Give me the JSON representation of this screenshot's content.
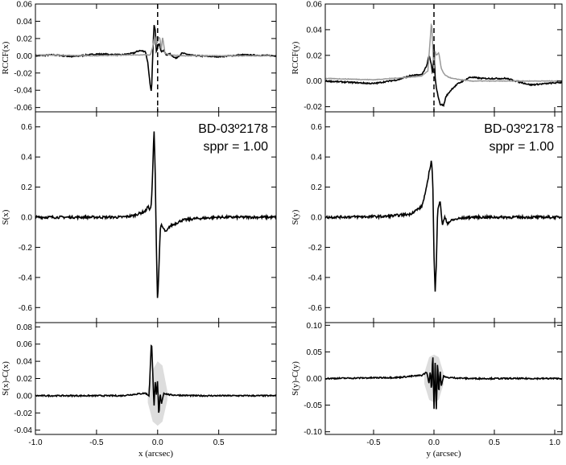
{
  "chart_data": [
    {
      "type": "line",
      "id": "rccf_x",
      "ylabel": "RCCF(x)",
      "xlim": [
        -1.0,
        0.97
      ],
      "ylim": [
        -0.065,
        0.06
      ],
      "yticks": [
        -0.06,
        -0.04,
        -0.02,
        0.0,
        0.02,
        0.04,
        0.06
      ],
      "ytick_labels": [
        "-0.06",
        "-0.04",
        "-0.02",
        "0.00",
        "0.02",
        "0.04",
        "0.06"
      ],
      "vline_x": 0.0,
      "series": [
        {
          "color": "#000000",
          "x": [
            -1.0,
            -0.85,
            -0.7,
            -0.5,
            -0.3,
            -0.2,
            -0.15,
            -0.1,
            -0.08,
            -0.06,
            -0.05,
            -0.04,
            -0.03,
            -0.02,
            -0.01,
            0.0,
            0.01,
            0.02,
            0.03,
            0.05,
            0.07,
            0.1,
            0.15,
            0.2,
            0.3,
            0.5,
            0.7,
            0.97
          ],
          "y": [
            0.0,
            0.001,
            -0.001,
            0.002,
            0.001,
            0.003,
            0.006,
            0.005,
            -0.008,
            -0.036,
            -0.043,
            0.0,
            0.036,
            0.03,
            0.005,
            0.01,
            0.015,
            0.01,
            0.005,
            0.006,
            0.001,
            0.002,
            -0.003,
            0.003,
            0.0,
            -0.001,
            0.001,
            0.0
          ]
        },
        {
          "color": "#999999",
          "x": [
            -1.0,
            -0.5,
            -0.2,
            -0.1,
            -0.06,
            -0.04,
            -0.03,
            -0.02,
            -0.01,
            0.0,
            0.01,
            0.02,
            0.03,
            0.04,
            0.06,
            0.1,
            0.2,
            0.5,
            0.97
          ],
          "y": [
            0.001,
            0.0,
            0.001,
            0.001,
            0.001,
            0.01,
            0.02,
            0.012,
            0.023,
            0.015,
            0.022,
            0.02,
            0.005,
            0.022,
            0.003,
            0.001,
            0.0,
            0.0,
            0.0
          ]
        }
      ]
    },
    {
      "type": "line",
      "id": "s_x",
      "ylabel": "S(x)",
      "xlim": [
        -1.0,
        0.97
      ],
      "ylim": [
        -0.7,
        0.7
      ],
      "yticks": [
        -0.6,
        -0.4,
        -0.2,
        0.0,
        0.2,
        0.4,
        0.6
      ],
      "ytick_labels": [
        "-0.6",
        "-0.4",
        "-0.2",
        "0.0",
        "0.2",
        "0.4",
        "0.6"
      ],
      "annotation_line1": "BD-03º2178",
      "annotation_line2": "sppr = 1.00",
      "series": [
        {
          "color": "#000000",
          "x": [
            -1.0,
            -0.3,
            -0.2,
            -0.1,
            -0.08,
            -0.06,
            -0.05,
            -0.04,
            -0.03,
            -0.02,
            -0.01,
            0.0,
            0.01,
            0.02,
            0.03,
            0.05,
            0.07,
            0.1,
            0.15,
            0.2,
            0.3,
            0.5,
            0.7,
            0.97
          ],
          "y": [
            0.0,
            0.0,
            0.01,
            0.04,
            0.07,
            0.05,
            0.1,
            0.3,
            0.6,
            0.3,
            -0.2,
            -0.57,
            -0.35,
            -0.1,
            -0.05,
            -0.08,
            -0.1,
            -0.06,
            -0.04,
            -0.02,
            -0.01,
            0.0,
            0.0,
            0.0
          ]
        }
      ]
    },
    {
      "type": "line",
      "id": "s_minus_c_x",
      "ylabel": "S(x)-C(x)",
      "xlabel": "x (arcsec)",
      "xlim": [
        -1.0,
        0.97
      ],
      "ylim": [
        -0.045,
        0.085
      ],
      "yticks": [
        -0.04,
        -0.02,
        0.0,
        0.02,
        0.04,
        0.06,
        0.08
      ],
      "ytick_labels": [
        "-0.04",
        "-0.02",
        "0.00",
        "0.02",
        "0.04",
        "0.06",
        "0.08"
      ],
      "xticks": [
        -1.0,
        -0.5,
        0.0,
        0.5
      ],
      "xtick_labels": [
        "-1.0",
        "-0.5",
        "0.0",
        "0.5"
      ],
      "band": {
        "color": "#dddddd",
        "x": [
          -0.08,
          -0.04,
          0.0,
          0.04,
          0.08
        ],
        "low": [
          -0.008,
          -0.03,
          -0.035,
          -0.03,
          -0.005
        ],
        "high": [
          0.008,
          0.03,
          0.04,
          0.035,
          0.005
        ]
      },
      "series": [
        {
          "color": "#000000",
          "x": [
            -1.0,
            -0.3,
            -0.1,
            -0.07,
            -0.05,
            -0.04,
            -0.03,
            -0.02,
            -0.01,
            0.0,
            0.01,
            0.02,
            0.03,
            0.05,
            0.1,
            0.3,
            0.97
          ],
          "y": [
            0.0,
            0.0,
            0.003,
            0.0,
            0.066,
            0.03,
            -0.015,
            0.017,
            0.0,
            0.018,
            -0.027,
            0.005,
            -0.01,
            0.003,
            0.001,
            0.0,
            0.0
          ]
        }
      ]
    },
    {
      "type": "line",
      "id": "rccf_y",
      "ylabel": "RCCF(y)",
      "xlim": [
        -0.9,
        1.06
      ],
      "ylim": [
        -0.024,
        0.06
      ],
      "yticks": [
        -0.02,
        0.0,
        0.02,
        0.04,
        0.06
      ],
      "ytick_labels": [
        "-0.02",
        "0.00",
        "0.02",
        "0.04",
        "0.06"
      ],
      "vline_x": 0.0,
      "series": [
        {
          "color": "#000000",
          "x": [
            -0.9,
            -0.7,
            -0.5,
            -0.3,
            -0.2,
            -0.1,
            -0.06,
            -0.04,
            -0.02,
            -0.01,
            0.0,
            0.01,
            0.02,
            0.03,
            0.05,
            0.08,
            0.1,
            0.15,
            0.2,
            0.3,
            0.4,
            0.6,
            0.8,
            1.06
          ],
          "y": [
            0.0,
            -0.001,
            -0.002,
            0.001,
            0.004,
            0.005,
            0.012,
            0.02,
            0.012,
            0.004,
            0.03,
            0.002,
            -0.005,
            -0.01,
            -0.018,
            -0.019,
            -0.012,
            -0.006,
            -0.002,
            0.003,
            0.002,
            0.002,
            -0.003,
            -0.001
          ]
        },
        {
          "color": "#999999",
          "x": [
            -0.9,
            -0.5,
            -0.2,
            -0.1,
            -0.05,
            -0.02,
            0.0,
            0.01,
            0.02,
            0.04,
            0.06,
            0.08,
            0.1,
            0.15,
            0.3,
            0.6,
            1.06
          ],
          "y": [
            0.002,
            0.001,
            0.003,
            0.004,
            0.008,
            0.047,
            0.006,
            0.023,
            0.02,
            0.022,
            0.01,
            0.006,
            0.004,
            0.002,
            0.0,
            0.0,
            0.0
          ]
        }
      ]
    },
    {
      "type": "line",
      "id": "s_y",
      "ylabel": "S(y)",
      "xlim": [
        -0.9,
        1.06
      ],
      "ylim": [
        -0.7,
        0.7
      ],
      "yticks": [
        -0.6,
        -0.4,
        -0.2,
        0.0,
        0.2,
        0.4,
        0.6
      ],
      "ytick_labels": [
        "-0.6",
        "-0.4",
        "-0.2",
        "0.0",
        "0.2",
        "0.4",
        "0.6"
      ],
      "annotation_line1": "BD-03º2178",
      "annotation_line2": "sppr = 1.00",
      "series": [
        {
          "color": "#000000",
          "x": [
            -0.9,
            -0.4,
            -0.2,
            -0.1,
            -0.06,
            -0.04,
            -0.02,
            -0.01,
            0.0,
            0.01,
            0.02,
            0.03,
            0.05,
            0.07,
            0.09,
            0.11,
            0.15,
            0.2,
            0.3,
            0.5,
            0.8,
            1.06
          ],
          "y": [
            0.0,
            0.005,
            0.02,
            0.07,
            0.2,
            0.3,
            0.38,
            0.25,
            -0.25,
            -0.5,
            -0.3,
            0.05,
            0.11,
            -0.05,
            0.0,
            -0.04,
            -0.02,
            -0.01,
            0.0,
            0.0,
            0.0,
            0.0
          ]
        }
      ]
    },
    {
      "type": "line",
      "id": "s_minus_c_y",
      "ylabel": "S(y)-C(y)",
      "xlabel": "y (arcsec)",
      "xlim": [
        -0.9,
        1.06
      ],
      "ylim": [
        -0.105,
        0.105
      ],
      "yticks": [
        -0.1,
        -0.05,
        0.0,
        0.05,
        0.1
      ],
      "ytick_labels": [
        "-0.10",
        "-0.05",
        "0.00",
        "0.05",
        "0.10"
      ],
      "xticks": [
        -0.5,
        0.0,
        0.5,
        1.0
      ],
      "xtick_labels": [
        "-0.5",
        "0.0",
        "0.5",
        "1.0"
      ],
      "band": {
        "color": "#dddddd",
        "x": [
          -0.08,
          -0.04,
          0.0,
          0.04,
          0.08
        ],
        "low": [
          -0.01,
          -0.04,
          -0.045,
          -0.04,
          -0.01
        ],
        "high": [
          0.01,
          0.04,
          0.045,
          0.04,
          0.01
        ]
      },
      "series": [
        {
          "color": "#000000",
          "x": [
            -0.9,
            -0.3,
            -0.1,
            -0.06,
            -0.04,
            -0.03,
            -0.02,
            -0.01,
            0.0,
            0.01,
            0.02,
            0.03,
            0.04,
            0.05,
            0.06,
            0.08,
            0.1,
            0.3,
            1.06
          ],
          "y": [
            0.0,
            0.002,
            0.006,
            0.012,
            -0.01,
            0.018,
            -0.03,
            0.056,
            -0.062,
            0.03,
            -0.065,
            0.04,
            -0.035,
            0.02,
            -0.015,
            0.005,
            0.002,
            0.0,
            0.0
          ]
        }
      ]
    }
  ]
}
